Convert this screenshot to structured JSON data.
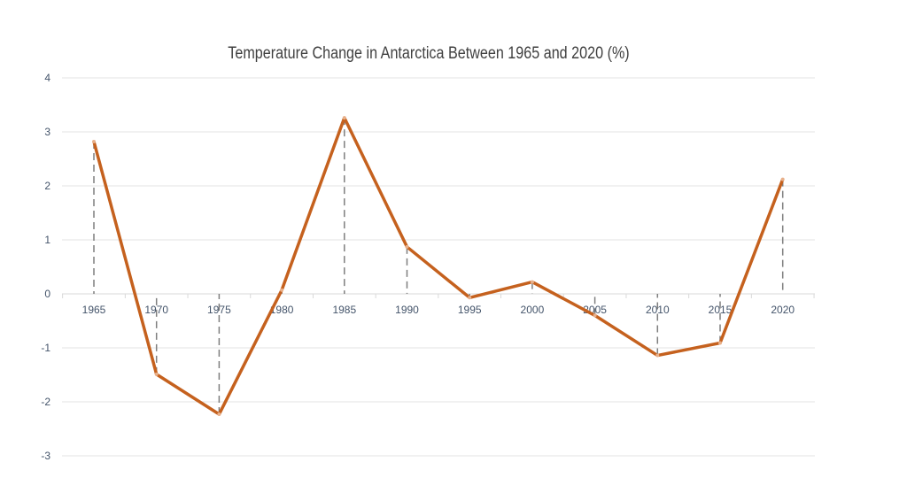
{
  "chart_data": {
    "type": "line",
    "title": "Temperature Change in Antarctica Between 1965 and 2020 (%)",
    "xlabel": "",
    "ylabel": "",
    "categories": [
      "1965",
      "1970",
      "1975",
      "1980",
      "1985",
      "1990",
      "1995",
      "2000",
      "2005",
      "2010",
      "2015",
      "2020"
    ],
    "values": [
      2.82,
      -1.49,
      -2.23,
      0.07,
      3.26,
      0.87,
      -0.07,
      0.22,
      -0.4,
      -1.14,
      -0.91,
      2.12
    ],
    "ylim": [
      -3,
      4
    ],
    "yticks": [
      "4",
      "3",
      "2",
      "1",
      "0",
      "-1",
      "-2",
      "-3"
    ],
    "grid": true,
    "drop_lines": true,
    "legend": "none",
    "colors": {
      "line": "#C5611E",
      "grid": "#E3E3E3",
      "drop_line": "#7F7F7F",
      "axis_text": "#44546A"
    }
  }
}
